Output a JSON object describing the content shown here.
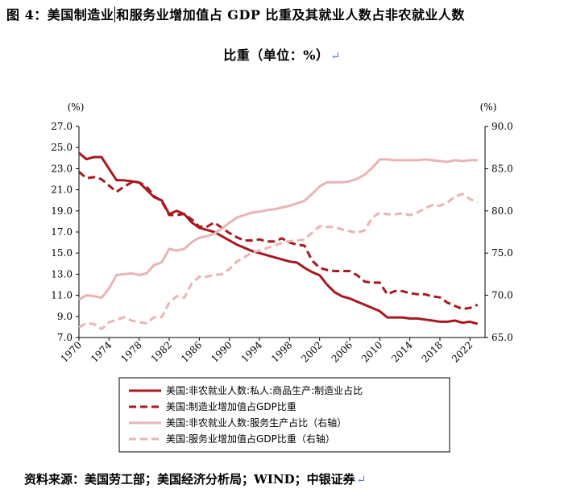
{
  "header": {
    "title_part1": "图 4：美国制造业",
    "title_part2": "和服务业增加值占 GDP 比重及其就业人数占非农就业人数",
    "title_line2": "比重（单位：%）",
    "return_mark": "↵"
  },
  "footer": {
    "source": "资料来源：美国劳工部；美国经济分析局；WIND；中银证券",
    "return_mark": "↵"
  },
  "colors": {
    "dark_red": "#a8191e",
    "light_pink": "#eab4b4"
  },
  "chart_data": {
    "type": "line",
    "left_axis": {
      "unit_label": "(%)",
      "ylim": [
        7.0,
        27.0
      ],
      "ticks": [
        "27.0",
        "25.0",
        "23.0",
        "21.0",
        "19.0",
        "17.0",
        "15.0",
        "13.0",
        "11.0",
        "9.0",
        "7.0"
      ]
    },
    "right_axis": {
      "unit_label": "(%)",
      "ylim": [
        65.0,
        90.0
      ],
      "ticks": [
        "90.0",
        "85.0",
        "80.0",
        "75.0",
        "70.0",
        "65.0"
      ]
    },
    "x_axis": {
      "xlim": [
        1970,
        2024
      ],
      "ticks": [
        "1970",
        "1974",
        "1978",
        "1982",
        "1986",
        "1990",
        "1994",
        "1998",
        "2002",
        "2006",
        "2010",
        "2014",
        "2018",
        "2022"
      ]
    },
    "legend_position": "bottom",
    "series": [
      {
        "name": "美国:非农就业人数:私人:商品生产:制造业占比",
        "axis": "left",
        "style": "solid",
        "color": "#a8191e",
        "x": [
          1970,
          1971,
          1972,
          1973,
          1974,
          1975,
          1976,
          1977,
          1978,
          1979,
          1980,
          1981,
          1982,
          1983,
          1984,
          1985,
          1986,
          1987,
          1988,
          1989,
          1990,
          1991,
          1992,
          1993,
          1994,
          1995,
          1996,
          1997,
          1998,
          1999,
          2000,
          2001,
          2002,
          2003,
          2004,
          2005,
          2006,
          2007,
          2008,
          2009,
          2010,
          2011,
          2012,
          2013,
          2014,
          2015,
          2016,
          2017,
          2018,
          2019,
          2020,
          2021,
          2022,
          2023
        ],
        "values": [
          24.5,
          23.9,
          24.1,
          24.1,
          23.0,
          21.9,
          21.9,
          21.8,
          21.7,
          21.0,
          20.3,
          20.0,
          18.7,
          19.0,
          18.7,
          17.9,
          17.4,
          17.2,
          17.0,
          16.6,
          16.2,
          15.8,
          15.5,
          15.2,
          15.0,
          14.8,
          14.6,
          14.4,
          14.2,
          14.1,
          13.6,
          13.2,
          12.9,
          12.0,
          11.3,
          10.9,
          10.7,
          10.4,
          10.1,
          9.8,
          9.5,
          8.9,
          8.9,
          8.9,
          8.8,
          8.8,
          8.7,
          8.6,
          8.5,
          8.5,
          8.6,
          8.4,
          8.5,
          8.3
        ]
      },
      {
        "name": "美国:制造业增加值占GDP比重",
        "axis": "left",
        "style": "dashed",
        "color": "#a8191e",
        "x": [
          1970,
          1971,
          1972,
          1973,
          1974,
          1975,
          1976,
          1977,
          1978,
          1979,
          1980,
          1981,
          1982,
          1983,
          1984,
          1985,
          1986,
          1987,
          1988,
          1989,
          1990,
          1991,
          1992,
          1993,
          1994,
          1995,
          1996,
          1997,
          1998,
          1999,
          2000,
          2001,
          2002,
          2003,
          2004,
          2005,
          2006,
          2007,
          2008,
          2009,
          2010,
          2011,
          2012,
          2013,
          2014,
          2015,
          2016,
          2017,
          2018,
          2019,
          2020,
          2021,
          2022,
          2023
        ],
        "values": [
          22.7,
          22.1,
          22.2,
          22.0,
          21.4,
          20.8,
          21.3,
          21.7,
          21.7,
          21.3,
          20.4,
          19.9,
          18.6,
          18.6,
          18.7,
          18.2,
          17.5,
          17.5,
          17.9,
          17.4,
          16.9,
          16.5,
          16.2,
          16.2,
          16.3,
          16.1,
          16.1,
          16.4,
          16.0,
          15.8,
          15.7,
          14.3,
          13.6,
          13.4,
          13.3,
          13.3,
          13.3,
          12.9,
          12.3,
          12.2,
          12.2,
          11.1,
          11.4,
          11.4,
          11.2,
          11.1,
          11.1,
          10.9,
          10.8,
          10.3,
          10.0,
          9.7,
          9.8,
          10.1
        ]
      },
      {
        "name": "美国:非农就业人数:服务生产占比（右轴）",
        "axis": "right",
        "style": "solid",
        "color": "#eab4b4",
        "x": [
          1970,
          1971,
          1972,
          1973,
          1974,
          1975,
          1976,
          1977,
          1978,
          1979,
          1980,
          1981,
          1982,
          1983,
          1984,
          1985,
          1986,
          1987,
          1988,
          1989,
          1990,
          1991,
          1992,
          1993,
          1994,
          1995,
          1996,
          1997,
          1998,
          1999,
          2000,
          2001,
          2002,
          2003,
          2004,
          2005,
          2006,
          2007,
          2008,
          2009,
          2010,
          2011,
          2012,
          2013,
          2014,
          2015,
          2016,
          2017,
          2018,
          2019,
          2020,
          2021,
          2022,
          2023
        ],
        "values": [
          69.5,
          70.0,
          69.9,
          69.7,
          70.8,
          72.4,
          72.5,
          72.6,
          72.4,
          72.6,
          73.6,
          73.9,
          75.5,
          75.3,
          75.5,
          76.3,
          76.8,
          77.0,
          77.3,
          77.9,
          78.6,
          79.2,
          79.5,
          79.8,
          79.9,
          80.1,
          80.2,
          80.4,
          80.6,
          80.9,
          81.2,
          82.0,
          82.9,
          83.4,
          83.4,
          83.4,
          83.5,
          83.8,
          84.3,
          85.1,
          86.1,
          86.1,
          86.0,
          86.0,
          86.0,
          86.0,
          86.1,
          86.0,
          85.9,
          85.8,
          86.0,
          85.9,
          86.0,
          86.0
        ]
      },
      {
        "name": "美国:服务业增加值占GDP比重（右轴）",
        "axis": "right",
        "style": "dashed",
        "color": "#eab4b4",
        "x": [
          1970,
          1971,
          1972,
          1973,
          1974,
          1975,
          1976,
          1977,
          1978,
          1979,
          1980,
          1981,
          1982,
          1983,
          1984,
          1985,
          1986,
          1987,
          1988,
          1989,
          1990,
          1991,
          1992,
          1993,
          1994,
          1995,
          1996,
          1997,
          1998,
          1999,
          2000,
          2001,
          2002,
          2003,
          2004,
          2005,
          2006,
          2007,
          2008,
          2009,
          2010,
          2011,
          2012,
          2013,
          2014,
          2015,
          2016,
          2017,
          2018,
          2019,
          2020,
          2021,
          2022,
          2023
        ],
        "values": [
          66.2,
          66.7,
          66.6,
          66.0,
          66.8,
          67.1,
          67.4,
          67.0,
          66.8,
          66.7,
          67.4,
          67.4,
          69.1,
          69.9,
          69.7,
          71.4,
          72.2,
          72.2,
          72.4,
          72.5,
          73.1,
          74.0,
          74.5,
          75.1,
          75.3,
          75.6,
          75.9,
          76.2,
          76.4,
          76.5,
          76.6,
          77.4,
          78.2,
          78.1,
          78.1,
          77.8,
          77.6,
          77.4,
          77.7,
          79.2,
          79.8,
          79.6,
          79.6,
          79.7,
          79.5,
          79.8,
          80.3,
          80.7,
          80.6,
          81.0,
          81.7,
          82.0,
          81.4,
          81.0
        ]
      }
    ]
  }
}
